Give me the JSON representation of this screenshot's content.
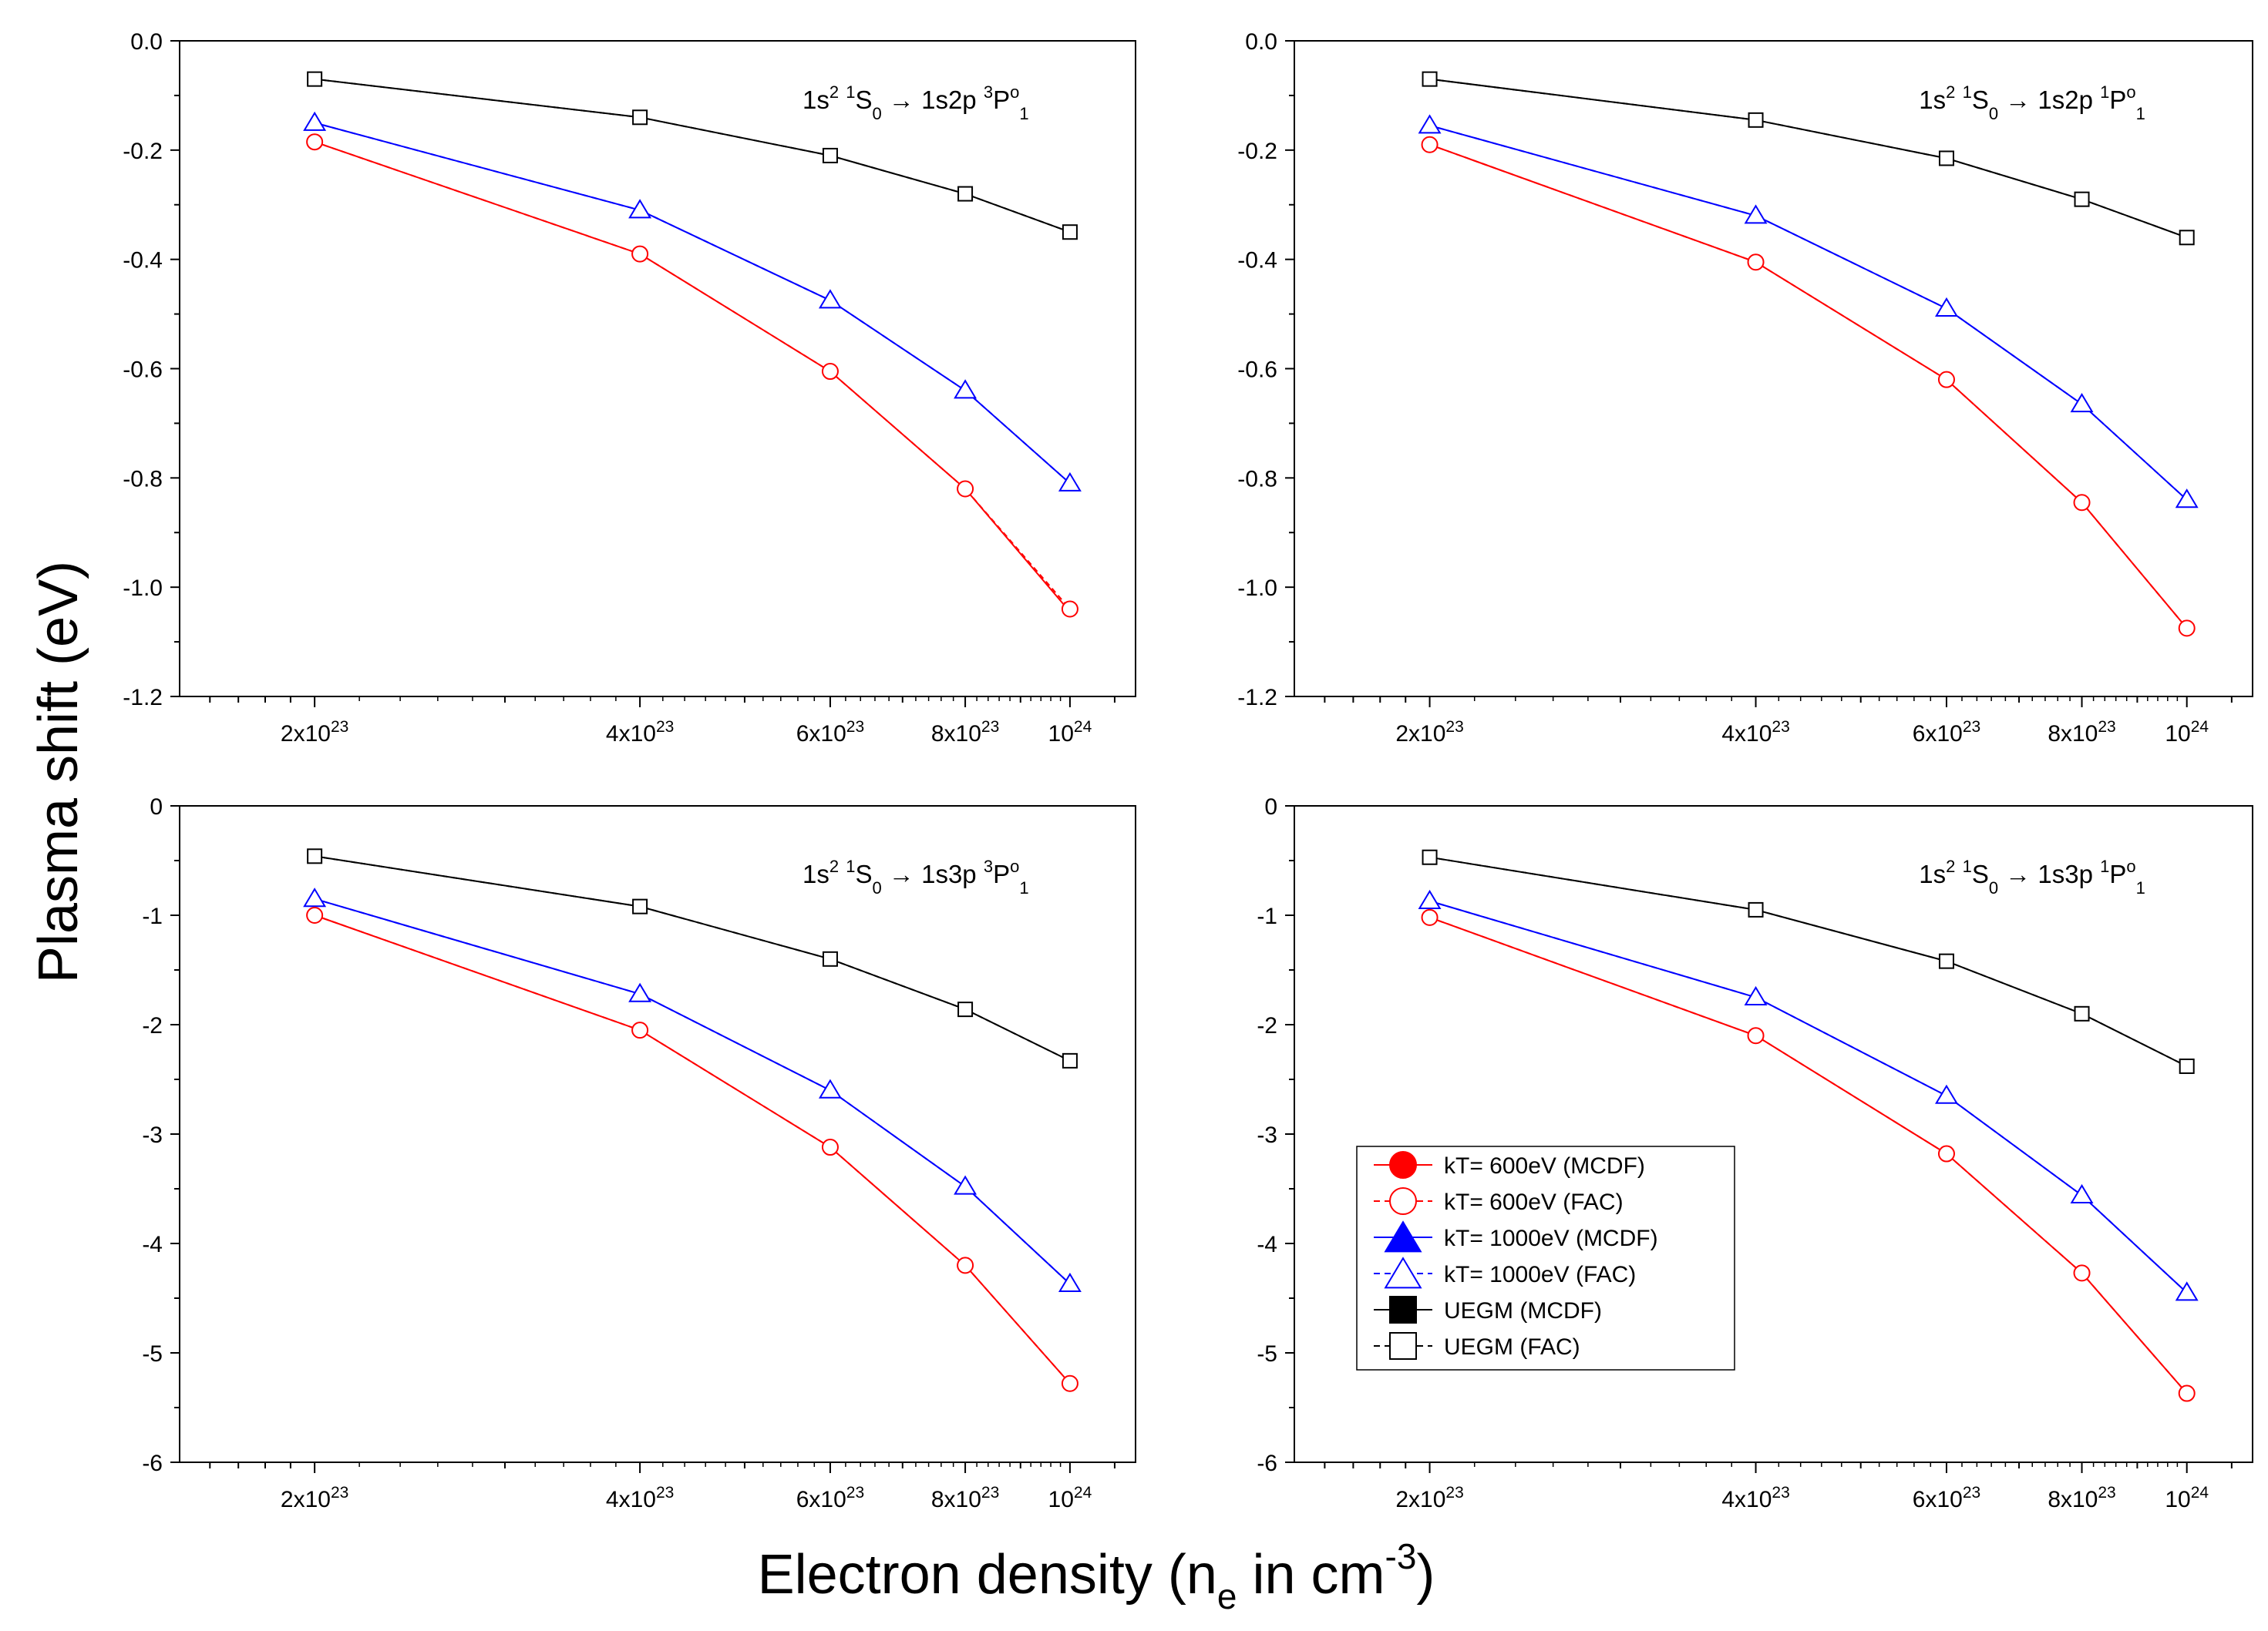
{
  "figure": {
    "ylabel": "Plasma shift (eV)",
    "xlabel": {
      "prefix": "Electron density (n",
      "sub": "e",
      "middle": " in cm",
      "sup": "-3",
      "suffix": ")"
    }
  },
  "chart_data": [
    {
      "type": "line",
      "panel": "top-left",
      "annotation": {
        "parts": [
          {
            "t": "1s",
            "s": "n"
          },
          {
            "t": "2",
            "s": "sup"
          },
          {
            "t": " ",
            "s": "n"
          },
          {
            "t": "1",
            "s": "sup"
          },
          {
            "t": "S",
            "s": "n"
          },
          {
            "t": "0",
            "s": "sub"
          },
          {
            "t": " → 1s2p ",
            "s": "n"
          },
          {
            "t": "3",
            "s": "sup"
          },
          {
            "t": "P",
            "s": "n"
          },
          {
            "t": "o",
            "s": "sup"
          },
          {
            "t": "1",
            "s": "sub"
          }
        ]
      },
      "x_scale": "log",
      "x_ticks": [
        {
          "value": 2e+23,
          "mant": "2x10",
          "exp": "23"
        },
        {
          "value": 4e+23,
          "mant": "4x10",
          "exp": "23"
        },
        {
          "value": 6e+23,
          "mant": "6x10",
          "exp": "23"
        },
        {
          "value": 8e+23,
          "mant": "8x10",
          "exp": "23"
        },
        {
          "value": 1e+24,
          "mant": "10",
          "exp": "24"
        }
      ],
      "xlim": [
        1.5e+23,
        1.15e+24
      ],
      "ylim": [
        -1.2,
        0.0
      ],
      "y_ticks": [
        "0.0",
        "-0.2",
        "-0.4",
        "-0.6",
        "-0.8",
        "-1.0",
        "-1.2"
      ],
      "y_tick_values": [
        0.0,
        -0.2,
        -0.4,
        -0.6,
        -0.8,
        -1.0,
        -1.2
      ],
      "y_minor_step": 0.1,
      "x": [
        2e+23,
        4e+23,
        6e+23,
        8e+23,
        1e+24
      ],
      "series": [
        {
          "name": "kT= 600eV (MCDF)",
          "values": [
            -0.185,
            -0.39,
            -0.605,
            -0.82,
            -1.045
          ]
        },
        {
          "name": "kT= 600eV (FAC)",
          "values": [
            -0.185,
            -0.39,
            -0.605,
            -0.82,
            -1.04
          ]
        },
        {
          "name": "kT= 1000eV (MCDF)",
          "values": [
            -0.15,
            -0.31,
            -0.475,
            -0.64,
            -0.81
          ]
        },
        {
          "name": "kT= 1000eV (FAC)",
          "values": [
            -0.15,
            -0.31,
            -0.475,
            -0.64,
            -0.81
          ]
        },
        {
          "name": "UEGM (MCDF)",
          "values": [
            -0.07,
            -0.14,
            -0.21,
            -0.28,
            -0.35
          ]
        },
        {
          "name": "UEGM (FAC)",
          "values": [
            -0.07,
            -0.14,
            -0.21,
            -0.28,
            -0.35
          ]
        }
      ]
    },
    {
      "type": "line",
      "panel": "top-right",
      "annotation": {
        "parts": [
          {
            "t": "1s",
            "s": "n"
          },
          {
            "t": "2",
            "s": "sup"
          },
          {
            "t": " ",
            "s": "n"
          },
          {
            "t": "1",
            "s": "sup"
          },
          {
            "t": "S",
            "s": "n"
          },
          {
            "t": "0",
            "s": "sub"
          },
          {
            "t": " → 1s2p ",
            "s": "n"
          },
          {
            "t": "1",
            "s": "sup"
          },
          {
            "t": "P",
            "s": "n"
          },
          {
            "t": "o",
            "s": "sup"
          },
          {
            "t": "1",
            "s": "sub"
          }
        ]
      },
      "x_scale": "log",
      "x_ticks": [
        {
          "value": 2e+23,
          "mant": "2x10",
          "exp": "23"
        },
        {
          "value": 4e+23,
          "mant": "4x10",
          "exp": "23"
        },
        {
          "value": 6e+23,
          "mant": "6x10",
          "exp": "23"
        },
        {
          "value": 8e+23,
          "mant": "8x10",
          "exp": "23"
        },
        {
          "value": 1e+24,
          "mant": "10",
          "exp": "24"
        }
      ],
      "xlim": [
        1.5e+23,
        1.15e+24
      ],
      "ylim": [
        -1.2,
        0.0
      ],
      "y_ticks": [
        "0.0",
        "-0.2",
        "-0.4",
        "-0.6",
        "-0.8",
        "-1.0",
        "-1.2"
      ],
      "y_tick_values": [
        0.0,
        -0.2,
        -0.4,
        -0.6,
        -0.8,
        -1.0,
        -1.2
      ],
      "y_minor_step": 0.1,
      "x": [
        2e+23,
        4e+23,
        6e+23,
        8e+23,
        1e+24
      ],
      "series": [
        {
          "name": "kT= 600eV (MCDF)",
          "values": [
            -0.19,
            -0.405,
            -0.62,
            -0.845,
            -1.075
          ]
        },
        {
          "name": "kT= 600eV (FAC)",
          "values": [
            -0.19,
            -0.405,
            -0.62,
            -0.845,
            -1.075
          ]
        },
        {
          "name": "kT= 1000eV (MCDF)",
          "values": [
            -0.155,
            -0.32,
            -0.49,
            -0.665,
            -0.84
          ]
        },
        {
          "name": "kT= 1000eV (FAC)",
          "values": [
            -0.155,
            -0.32,
            -0.49,
            -0.665,
            -0.84
          ]
        },
        {
          "name": "UEGM (MCDF)",
          "values": [
            -0.07,
            -0.145,
            -0.215,
            -0.29,
            -0.36
          ]
        },
        {
          "name": "UEGM (FAC)",
          "values": [
            -0.07,
            -0.145,
            -0.215,
            -0.29,
            -0.36
          ]
        }
      ]
    },
    {
      "type": "line",
      "panel": "bottom-left",
      "annotation": {
        "parts": [
          {
            "t": "1s",
            "s": "n"
          },
          {
            "t": "2",
            "s": "sup"
          },
          {
            "t": " ",
            "s": "n"
          },
          {
            "t": "1",
            "s": "sup"
          },
          {
            "t": "S",
            "s": "n"
          },
          {
            "t": "0",
            "s": "sub"
          },
          {
            "t": " → 1s3p ",
            "s": "n"
          },
          {
            "t": "3",
            "s": "sup"
          },
          {
            "t": "P",
            "s": "n"
          },
          {
            "t": "o",
            "s": "sup"
          },
          {
            "t": "1",
            "s": "sub"
          }
        ]
      },
      "x_scale": "log",
      "x_ticks": [
        {
          "value": 2e+23,
          "mant": "2x10",
          "exp": "23"
        },
        {
          "value": 4e+23,
          "mant": "4x10",
          "exp": "23"
        },
        {
          "value": 6e+23,
          "mant": "6x10",
          "exp": "23"
        },
        {
          "value": 8e+23,
          "mant": "8x10",
          "exp": "23"
        },
        {
          "value": 1e+24,
          "mant": "10",
          "exp": "24"
        }
      ],
      "xlim": [
        1.5e+23,
        1.15e+24
      ],
      "ylim": [
        -6,
        0
      ],
      "y_ticks": [
        "0",
        "-1",
        "-2",
        "-3",
        "-4",
        "-5",
        "-6"
      ],
      "y_tick_values": [
        0,
        -1,
        -2,
        -3,
        -4,
        -5,
        -6
      ],
      "y_minor_step": 0.5,
      "x": [
        2e+23,
        4e+23,
        6e+23,
        8e+23,
        1e+24
      ],
      "series": [
        {
          "name": "kT= 600eV (MCDF)",
          "values": [
            -1.0,
            -2.05,
            -3.12,
            -4.2,
            -5.28
          ]
        },
        {
          "name": "kT= 600eV (FAC)",
          "values": [
            -1.0,
            -2.05,
            -3.12,
            -4.2,
            -5.28
          ]
        },
        {
          "name": "kT= 1000eV (MCDF)",
          "values": [
            -0.85,
            -1.72,
            -2.6,
            -3.48,
            -4.37
          ]
        },
        {
          "name": "kT= 1000eV (FAC)",
          "values": [
            -0.85,
            -1.72,
            -2.6,
            -3.48,
            -4.37
          ]
        },
        {
          "name": "UEGM (MCDF)",
          "values": [
            -0.46,
            -0.92,
            -1.4,
            -1.86,
            -2.33
          ]
        },
        {
          "name": "UEGM (FAC)",
          "values": [
            -0.46,
            -0.92,
            -1.4,
            -1.86,
            -2.33
          ]
        }
      ]
    },
    {
      "type": "line",
      "panel": "bottom-right",
      "annotation": {
        "parts": [
          {
            "t": "1s",
            "s": "n"
          },
          {
            "t": "2",
            "s": "sup"
          },
          {
            "t": " ",
            "s": "n"
          },
          {
            "t": "1",
            "s": "sup"
          },
          {
            "t": "S",
            "s": "n"
          },
          {
            "t": "0",
            "s": "sub"
          },
          {
            "t": " → 1s3p ",
            "s": "n"
          },
          {
            "t": "1",
            "s": "sup"
          },
          {
            "t": "P",
            "s": "n"
          },
          {
            "t": "o",
            "s": "sup"
          },
          {
            "t": "1",
            "s": "sub"
          }
        ]
      },
      "x_scale": "log",
      "x_ticks": [
        {
          "value": 2e+23,
          "mant": "2x10",
          "exp": "23"
        },
        {
          "value": 4e+23,
          "mant": "4x10",
          "exp": "23"
        },
        {
          "value": 6e+23,
          "mant": "6x10",
          "exp": "23"
        },
        {
          "value": 8e+23,
          "mant": "8x10",
          "exp": "23"
        },
        {
          "value": 1e+24,
          "mant": "10",
          "exp": "24"
        }
      ],
      "xlim": [
        1.5e+23,
        1.15e+24
      ],
      "ylim": [
        -6,
        0
      ],
      "y_ticks": [
        "0",
        "-1",
        "-2",
        "-3",
        "-4",
        "-5",
        "-6"
      ],
      "y_tick_values": [
        0,
        -1,
        -2,
        -3,
        -4,
        -5,
        -6
      ],
      "y_minor_step": 0.5,
      "x": [
        2e+23,
        4e+23,
        6e+23,
        8e+23,
        1e+24
      ],
      "legend_location": "lower-left",
      "series": [
        {
          "name": "kT= 600eV (MCDF)",
          "values": [
            -1.02,
            -2.1,
            -3.18,
            -4.27,
            -5.37
          ]
        },
        {
          "name": "kT= 600eV (FAC)",
          "values": [
            -1.02,
            -2.1,
            -3.18,
            -4.27,
            -5.37
          ]
        },
        {
          "name": "kT= 1000eV (MCDF)",
          "values": [
            -0.87,
            -1.75,
            -2.65,
            -3.56,
            -4.45
          ]
        },
        {
          "name": "kT= 1000eV (FAC)",
          "values": [
            -0.87,
            -1.75,
            -2.65,
            -3.56,
            -4.45
          ]
        },
        {
          "name": "UEGM (MCDF)",
          "values": [
            -0.47,
            -0.95,
            -1.42,
            -1.9,
            -2.38
          ]
        },
        {
          "name": "UEGM (FAC)",
          "values": [
            -0.47,
            -0.95,
            -1.42,
            -1.9,
            -2.38
          ]
        }
      ]
    }
  ],
  "styles": [
    {
      "color": "#ff0000",
      "dash": "none",
      "marker": "circle",
      "filled": true
    },
    {
      "color": "#ff0000",
      "dash": "dashed",
      "marker": "circle",
      "filled": false
    },
    {
      "color": "#0000ff",
      "dash": "none",
      "marker": "triangle",
      "filled": true
    },
    {
      "color": "#0000ff",
      "dash": "dashed",
      "marker": "triangle",
      "filled": false
    },
    {
      "color": "#000000",
      "dash": "none",
      "marker": "square",
      "filled": true
    },
    {
      "color": "#000000",
      "dash": "dashed",
      "marker": "square",
      "filled": false
    }
  ],
  "legend": {
    "entries": [
      "kT= 600eV (MCDF)",
      "kT= 600eV (FAC)",
      "kT= 1000eV (MCDF)",
      "kT= 1000eV (FAC)",
      "UEGM (MCDF)",
      "UEGM (FAC)"
    ]
  }
}
